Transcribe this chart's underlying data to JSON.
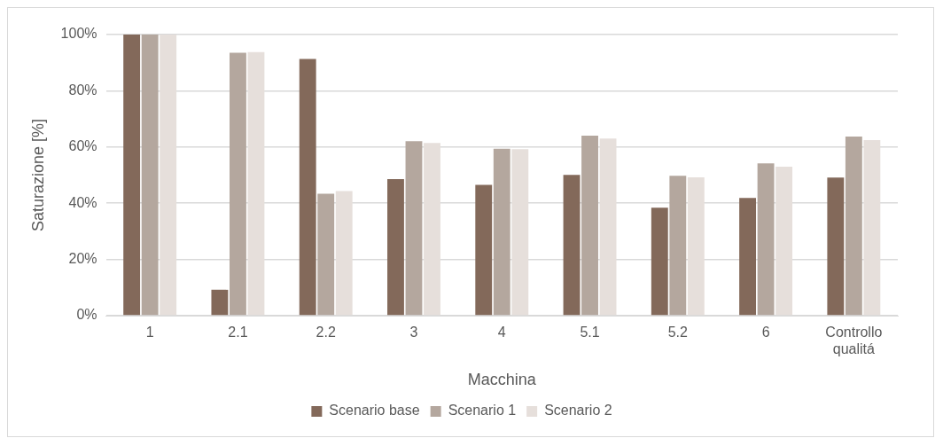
{
  "chart_data": {
    "type": "bar",
    "xlabel": "Macchina",
    "ylabel": "Saturazione [%]",
    "categories": [
      "1",
      "2.1",
      "2.2",
      "3",
      "4",
      "5.1",
      "5.2",
      "6",
      "Controllo qualitá"
    ],
    "series": [
      {
        "name": "Scenario base",
        "color": "#83695a",
        "values": [
          100,
          9.2,
          91.3,
          48.6,
          46.5,
          50.1,
          38.4,
          41.9,
          49.1
        ]
      },
      {
        "name": "Scenario 1",
        "color": "#b4a79e",
        "values": [
          100,
          93.5,
          43.4,
          62.1,
          59.4,
          64.0,
          49.8,
          54.2,
          63.7
        ]
      },
      {
        "name": "Scenario 2",
        "color": "#e6dfdb",
        "values": [
          100,
          93.8,
          44.3,
          61.4,
          59.2,
          63.0,
          49.2,
          53.0,
          62.5
        ]
      }
    ],
    "ylim": [
      0,
      100
    ],
    "yticks": [
      {
        "value": 0,
        "label": "0%"
      },
      {
        "value": 20,
        "label": "20%"
      },
      {
        "value": 40,
        "label": "40%"
      },
      {
        "value": 60,
        "label": "60%"
      },
      {
        "value": 80,
        "label": "80%"
      },
      {
        "value": 100,
        "label": "100%"
      }
    ],
    "grid": "y",
    "legend": "bottom"
  }
}
